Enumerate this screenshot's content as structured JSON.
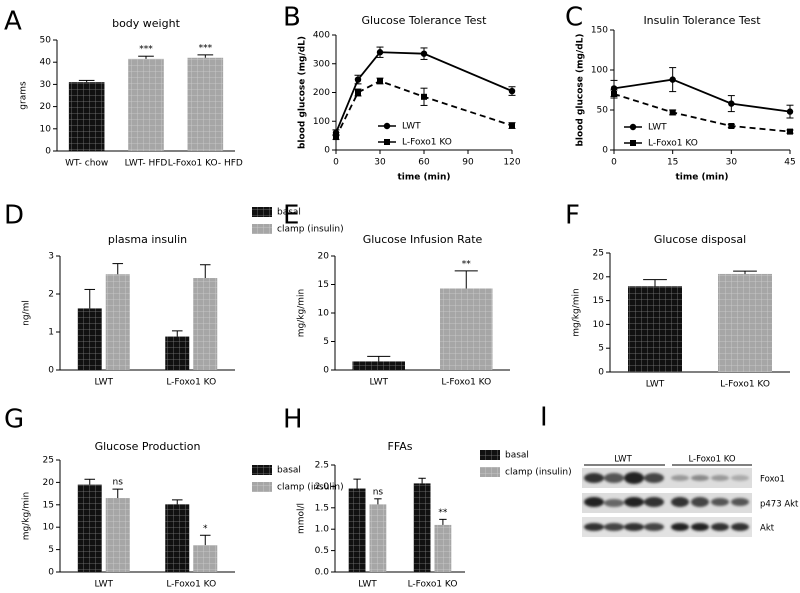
{
  "chart_data": [
    {
      "panel": "A",
      "type": "bar",
      "title": "body weight",
      "y_label": "grams",
      "categories": [
        "WT- chow",
        "LWT- HFD",
        "L-Foxo1 KO- HFD"
      ],
      "values": [
        31,
        41.5,
        42
      ],
      "errors": [
        0.8,
        1.2,
        1.3
      ],
      "colors": [
        "#111111",
        "#a6a6a6",
        "#a6a6a6"
      ],
      "annotations": [
        null,
        "***",
        "***"
      ],
      "ylim": [
        0,
        50
      ],
      "yticks": [
        0,
        10,
        20,
        30,
        40,
        50
      ]
    },
    {
      "panel": "B",
      "type": "line",
      "title": "Glucose Tolerance Test",
      "x_label": "time (min)",
      "y_label": "blood glucose (mg/dL)",
      "x": [
        0,
        15,
        30,
        60,
        120
      ],
      "series": [
        {
          "name": "LWT",
          "color": "#000000",
          "marker": "circle",
          "line_style": "solid",
          "values": [
            60,
            245,
            340,
            335,
            205
          ],
          "errors": [
            10,
            15,
            18,
            20,
            15
          ]
        },
        {
          "name": "L-Foxo1 KO",
          "color": "#000000",
          "marker": "square",
          "line_style": "dashed",
          "values": [
            45,
            200,
            240,
            185,
            85
          ],
          "errors": [
            8,
            12,
            10,
            30,
            10
          ]
        }
      ],
      "xlim": [
        0,
        120
      ],
      "xticks": [
        0,
        30,
        60,
        90,
        120
      ],
      "ylim": [
        0,
        400
      ],
      "yticks": [
        0,
        100,
        200,
        300,
        400
      ]
    },
    {
      "panel": "C",
      "type": "line",
      "title": "Insulin Tolerance Test",
      "x_label": "time (min)",
      "y_label": "blood glucose (mg/dL)",
      "x": [
        0,
        15,
        30,
        45
      ],
      "series": [
        {
          "name": "LWT",
          "color": "#000000",
          "marker": "circle",
          "line_style": "solid",
          "values": [
            77,
            88,
            58,
            48
          ],
          "errors": [
            10,
            15,
            10,
            8
          ]
        },
        {
          "name": "L-Foxo1 KO",
          "color": "#000000",
          "marker": "square",
          "line_style": "dashed",
          "values": [
            70,
            47,
            30,
            23
          ],
          "errors": [
            5,
            3,
            2,
            2
          ]
        }
      ],
      "xlim": [
        0,
        45
      ],
      "xticks": [
        0,
        15,
        30,
        45
      ],
      "ylim": [
        0,
        150
      ],
      "yticks": [
        0,
        50,
        100,
        150
      ]
    },
    {
      "panel": "D",
      "type": "bar",
      "title": "plasma insulin",
      "y_label": "ng/ml",
      "categories": [
        "LWT",
        "L-Foxo1 KO"
      ],
      "series": [
        {
          "name": "basal",
          "color": "#111111",
          "values": [
            1.62,
            0.88
          ],
          "errors": [
            0.5,
            0.15
          ]
        },
        {
          "name": "clamp (insulin)",
          "color": "#a6a6a6",
          "values": [
            2.52,
            2.42
          ],
          "errors": [
            0.28,
            0.35
          ]
        }
      ],
      "ylim": [
        0,
        3
      ],
      "yticks": [
        0,
        1,
        2,
        3
      ]
    },
    {
      "panel": "E",
      "type": "bar",
      "title": "Glucose Infusion Rate",
      "y_label": "mg/kg/min",
      "categories": [
        "LWT",
        "L-Foxo1 KO"
      ],
      "values": [
        1.5,
        14.3
      ],
      "errors": [
        0.9,
        3.1
      ],
      "colors": [
        "#111111",
        "#a6a6a6"
      ],
      "annotations": [
        null,
        "**"
      ],
      "ylim": [
        0,
        20
      ],
      "yticks": [
        0,
        5,
        10,
        15,
        20
      ]
    },
    {
      "panel": "F",
      "type": "bar",
      "title": "Glucose disposal",
      "y_label": "mg/kg/min",
      "categories": [
        "LWT",
        "L-Foxo1 KO"
      ],
      "values": [
        18,
        20.6
      ],
      "errors": [
        1.4,
        0.6
      ],
      "colors": [
        "#111111",
        "#a6a6a6"
      ],
      "ylim": [
        0,
        25
      ],
      "yticks": [
        0,
        5,
        10,
        15,
        20,
        25
      ]
    },
    {
      "panel": "G",
      "type": "bar",
      "title": "Glucose Production",
      "y_label": "mg/kg/min",
      "categories": [
        "LWT",
        "L-Foxo1 KO"
      ],
      "series": [
        {
          "name": "basal",
          "color": "#111111",
          "values": [
            19.5,
            15.1
          ],
          "errors": [
            1.2,
            1.0
          ]
        },
        {
          "name": "clamp (insulin)",
          "color": "#a6a6a6",
          "values": [
            16.5,
            6.0
          ],
          "errors": [
            2.0,
            2.2
          ],
          "annotations": [
            "ns",
            "*"
          ]
        }
      ],
      "ylim": [
        0,
        25
      ],
      "yticks": [
        0,
        5,
        10,
        15,
        20,
        25
      ]
    },
    {
      "panel": "H",
      "type": "bar",
      "title": "FFAs",
      "y_label": "mmol/l",
      "categories": [
        "LWT",
        "L-Foxo1 KO"
      ],
      "series": [
        {
          "name": "basal",
          "color": "#111111",
          "values": [
            1.95,
            2.07
          ],
          "errors": [
            0.22,
            0.12
          ]
        },
        {
          "name": "clamp (insulin)",
          "color": "#a6a6a6",
          "values": [
            1.58,
            1.1
          ],
          "errors": [
            0.13,
            0.13
          ],
          "annotations": [
            "ns",
            "**"
          ]
        }
      ],
      "ylim": [
        0,
        2.5
      ],
      "yticks": [
        {
          "value": 0,
          "label": "0.0"
        },
        0.5,
        {
          "value": 1,
          "label": "1.0"
        },
        1.5,
        {
          "value": 2,
          "label": "2.0"
        },
        2.5
      ]
    }
  ],
  "blot": {
    "panel": "I",
    "groups": [
      "LWT",
      "L-Foxo1 KO"
    ],
    "bands": [
      "Foxo1",
      "p473 Akt",
      "Akt"
    ]
  }
}
